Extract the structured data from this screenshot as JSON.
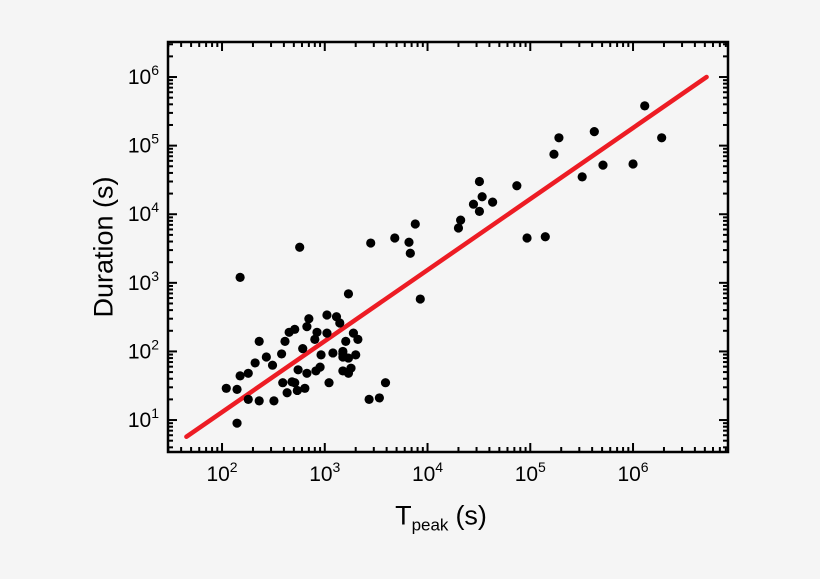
{
  "figure": {
    "background_color": "#f5f5f5",
    "frame_color": "#000000"
  },
  "chart_data": {
    "type": "scatter",
    "title": "",
    "xlabel": {
      "main": "T",
      "sub": "peak",
      "suffix": "(s)"
    },
    "ylabel": "Duration (s)",
    "x_scale": "log",
    "y_scale": "log",
    "xlim": [
      29.8,
      8400000
    ],
    "ylim": [
      3.42,
      3240000
    ],
    "x_major_ticks": [
      100,
      1000,
      10000,
      100000,
      1000000
    ],
    "y_major_ticks": [
      10,
      100,
      1000,
      10000,
      100000,
      1000000
    ],
    "grid": false,
    "legend": null,
    "marker_color": "#000000",
    "marker_radius": 4.6,
    "fit_line": {
      "color": "#ed1c24",
      "width": 4.5,
      "x": [
        45,
        5200000
      ],
      "y": [
        5.7,
        1000000
      ]
    },
    "points": [
      [
        1300000,
        380000
      ],
      [
        420000,
        160000
      ],
      [
        1900000,
        130000
      ],
      [
        190000,
        130000
      ],
      [
        170000,
        75000
      ],
      [
        510000,
        52000
      ],
      [
        1000000,
        54000
      ],
      [
        320000,
        35000
      ],
      [
        74000,
        26000
      ],
      [
        32000,
        30000
      ],
      [
        34000,
        18000
      ],
      [
        43000,
        15000
      ],
      [
        28000,
        14000
      ],
      [
        32000,
        11000
      ],
      [
        21000,
        8200
      ],
      [
        20000,
        6300
      ],
      [
        7600,
        7200
      ],
      [
        4800,
        4500
      ],
      [
        6600,
        3900
      ],
      [
        6800,
        2700
      ],
      [
        2800,
        3800
      ],
      [
        570,
        3300
      ],
      [
        93000,
        4500
      ],
      [
        140000,
        4700
      ],
      [
        8500,
        580
      ],
      [
        1700,
        690
      ],
      [
        150,
        1200
      ],
      [
        700,
        300
      ],
      [
        670,
        230
      ],
      [
        1050,
        340
      ],
      [
        1300,
        320
      ],
      [
        1400,
        260
      ],
      [
        840,
        190
      ],
      [
        800,
        150
      ],
      [
        1050,
        185
      ],
      [
        1900,
        185
      ],
      [
        2100,
        150
      ],
      [
        1600,
        140
      ],
      [
        1500,
        100
      ],
      [
        1200,
        95
      ],
      [
        1500,
        83
      ],
      [
        450,
        190
      ],
      [
        410,
        140
      ],
      [
        230,
        140
      ],
      [
        510,
        210
      ],
      [
        610,
        110
      ],
      [
        270,
        83
      ],
      [
        380,
        92
      ],
      [
        210,
        68
      ],
      [
        310,
        63
      ],
      [
        150,
        44
      ],
      [
        180,
        48
      ],
      [
        920,
        89
      ],
      [
        1500,
        92
      ],
      [
        1700,
        80
      ],
      [
        2000,
        89
      ],
      [
        550,
        54
      ],
      [
        670,
        48
      ],
      [
        820,
        52
      ],
      [
        900,
        59
      ],
      [
        1500,
        52
      ],
      [
        1700,
        48
      ],
      [
        1800,
        57
      ],
      [
        1100,
        35
      ],
      [
        510,
        35
      ],
      [
        390,
        35
      ],
      [
        480,
        36
      ],
      [
        110,
        29
      ],
      [
        140,
        28
      ],
      [
        180,
        20
      ],
      [
        230,
        19
      ],
      [
        320,
        19
      ],
      [
        430,
        25
      ],
      [
        540,
        27
      ],
      [
        640,
        29
      ],
      [
        140,
        9
      ],
      [
        2700,
        20
      ],
      [
        3400,
        21
      ],
      [
        3900,
        35
      ]
    ]
  }
}
